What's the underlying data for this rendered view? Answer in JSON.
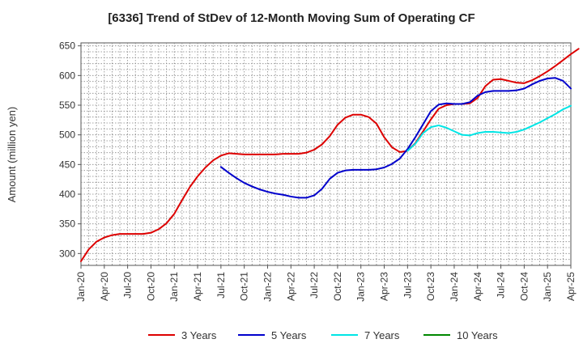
{
  "chart_data": {
    "type": "line",
    "title": "[6336]  Trend of StDev of 12-Month Moving Sum of Operating CF",
    "ylabel": "Amount (million yen)",
    "xlabel": "",
    "ylim": [
      280,
      655
    ],
    "y_ticks": [
      300,
      350,
      400,
      450,
      500,
      550,
      600,
      650
    ],
    "x_ticks": [
      "Jan-20",
      "Apr-20",
      "Jul-20",
      "Oct-20",
      "Jan-21",
      "Apr-21",
      "Jul-21",
      "Oct-21",
      "Jan-22",
      "Apr-22",
      "Jul-22",
      "Oct-22",
      "Jan-23",
      "Apr-23",
      "Jul-23",
      "Oct-23",
      "Jan-24",
      "Apr-24",
      "Jul-24",
      "Oct-24",
      "Jan-25",
      "Apr-25"
    ],
    "x_range_months": [
      0,
      63
    ],
    "grid": true,
    "legend_position": "bottom",
    "series": [
      {
        "name": "3 Years",
        "color": "#dd0000",
        "start_month": 0,
        "values": [
          287,
          307,
          320,
          327,
          331,
          333,
          333,
          333,
          333,
          335,
          341,
          351,
          367,
          390,
          412,
          430,
          445,
          457,
          465,
          469,
          468,
          467,
          467,
          467,
          467,
          467,
          468,
          468,
          468,
          470,
          475,
          484,
          498,
          517,
          529,
          534,
          534,
          530,
          519,
          496,
          479,
          471,
          473,
          486,
          506,
          526,
          544,
          550,
          552,
          552,
          553,
          562,
          582,
          593,
          594,
          591,
          588,
          587,
          592,
          599,
          607,
          616,
          626,
          636,
          645
        ]
      },
      {
        "name": "5 Years",
        "color": "#0000cc",
        "start_month": 18,
        "values": [
          446,
          436,
          427,
          419,
          413,
          408,
          404,
          401,
          399,
          396,
          394,
          394,
          398,
          409,
          426,
          436,
          440,
          441,
          441,
          441,
          442,
          445,
          451,
          460,
          476,
          496,
          518,
          540,
          551,
          553,
          552,
          552,
          555,
          566,
          572,
          574,
          574,
          574,
          575,
          578,
          585,
          591,
          595,
          596,
          591,
          578
        ]
      },
      {
        "name": "7 Years",
        "color": "#00e5e5",
        "start_month": 42,
        "values": [
          473,
          485,
          503,
          513,
          516,
          512,
          506,
          500,
          499,
          503,
          505,
          505,
          504,
          503,
          505,
          509,
          515,
          521,
          528,
          535,
          543,
          549
        ]
      },
      {
        "name": "10 Years",
        "color": "#008800",
        "start_month": 0,
        "values": []
      }
    ]
  }
}
